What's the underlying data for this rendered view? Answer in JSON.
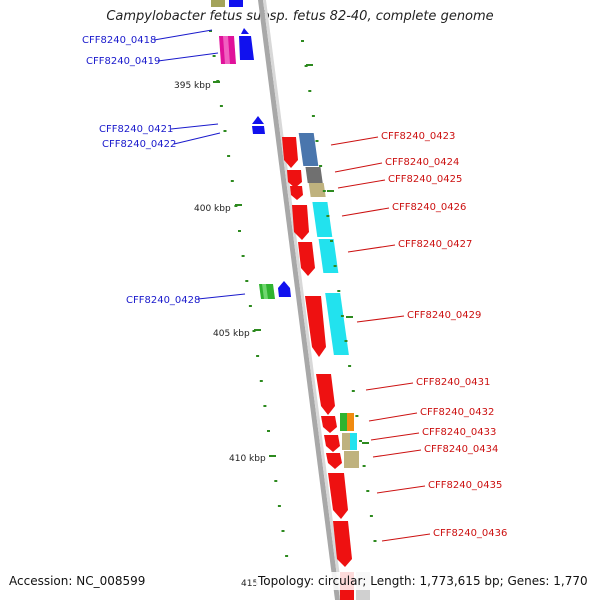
{
  "title": "Campylobacter fetus subsp. fetus 82-40, complete genome",
  "accession_label": "Accession: NC_008599",
  "topology_label": "Topology: circular; Length: 1,773,615 bp; Genes: 1,770",
  "colors": {
    "backbone": "#a8a8a8",
    "forward_label": "#1a1acc",
    "reverse_label": "#cc1111",
    "tick": "#2d8a1f",
    "red_gene": "#ee1111",
    "blue_gene": "#1111ee"
  },
  "scale_labels": [
    "395 kbp",
    "400 kbp",
    "405 kbp",
    "410 kbp",
    "415"
  ],
  "forward_genes": [
    {
      "label": "CFF8240_0418"
    },
    {
      "label": "CFF8240_0419"
    },
    {
      "label": "CFF8240_0421"
    },
    {
      "label": "CFF8240_0422"
    },
    {
      "label": "CFF8240_0428"
    }
  ],
  "reverse_genes": [
    {
      "label": "CFF8240_0423"
    },
    {
      "label": "CFF8240_0424"
    },
    {
      "label": "CFF8240_0425"
    },
    {
      "label": "CFF8240_0426"
    },
    {
      "label": "CFF8240_0427"
    },
    {
      "label": "CFF8240_0429"
    },
    {
      "label": "CFF8240_0431"
    },
    {
      "label": "CFF8240_0432"
    },
    {
      "label": "CFF8240_0433"
    },
    {
      "label": "CFF8240_0434"
    },
    {
      "label": "CFF8240_0435"
    },
    {
      "label": "CFF8240_0436"
    }
  ]
}
